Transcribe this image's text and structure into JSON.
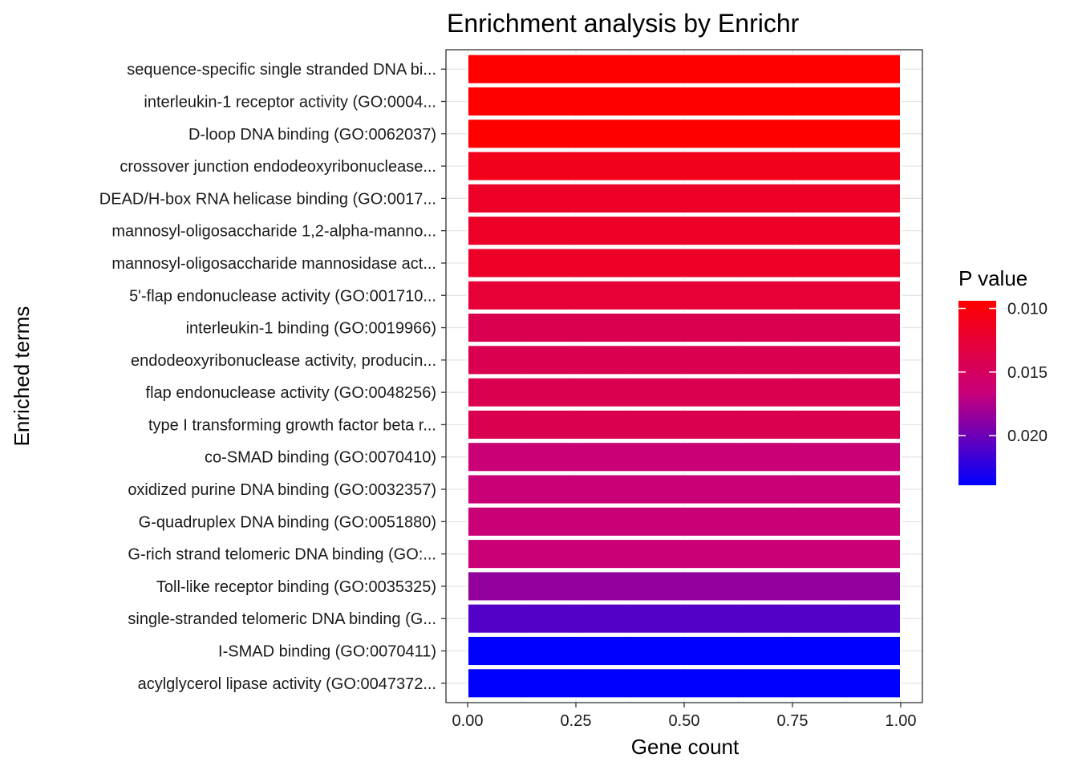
{
  "chart_data": {
    "type": "bar",
    "orientation": "horizontal",
    "title": "Enrichment analysis by Enrichr",
    "xlabel": "Gene count",
    "ylabel": "Enriched terms",
    "xlim": [
      -0.05,
      1.05
    ],
    "xticks": [
      0,
      0.25,
      0.5,
      0.75,
      1
    ],
    "xtick_labels": [
      "0.00",
      "0.25",
      "0.50",
      "0.75",
      "1.00"
    ],
    "grid": true,
    "categories": [
      "sequence-specific single stranded DNA bi...",
      "interleukin-1 receptor activity (GO:0004...",
      "D-loop DNA binding (GO:0062037)",
      "crossover junction endodeoxyribonuclease...",
      "DEAD/H-box RNA helicase binding (GO:0017...",
      "mannosyl-oligosaccharide 1,2-alpha-manno...",
      "mannosyl-oligosaccharide mannosidase act...",
      "5'-flap endonuclease activity (GO:001710...",
      "interleukin-1 binding (GO:0019966)",
      "endodeoxyribonuclease activity, producin...",
      "flap endonuclease activity (GO:0048256)",
      "type I transforming growth factor beta r...",
      "co-SMAD binding (GO:0070410)",
      "oxidized purine DNA binding (GO:0032357)",
      "G-quadruplex DNA binding (GO:0051880)",
      "G-rich strand telomeric DNA binding (GO:...",
      "Toll-like receptor binding (GO:0035325)",
      "single-stranded telomeric DNA binding (G...",
      "I-SMAD binding (GO:0070411)",
      "acylglycerol lipase activity (GO:0047372..."
    ],
    "values": [
      1,
      1,
      1,
      1,
      1,
      1,
      1,
      1,
      1,
      1,
      1,
      1,
      1,
      1,
      1,
      1,
      1,
      1,
      1,
      1
    ],
    "p_values": [
      0.0094,
      0.0094,
      0.0094,
      0.011,
      0.0118,
      0.0118,
      0.0118,
      0.0126,
      0.0141,
      0.0141,
      0.0141,
      0.0141,
      0.0164,
      0.0164,
      0.0164,
      0.0164,
      0.0186,
      0.0209,
      0.0239,
      0.0239
    ],
    "color_legend": {
      "title": "P value",
      "low_color": "#ff0000",
      "high_color": "#0000ff",
      "range": [
        0.0094,
        0.0239
      ],
      "ticks": [
        0.01,
        0.015,
        0.02
      ],
      "tick_labels": [
        "0.010",
        "0.015",
        "0.020"
      ]
    }
  }
}
